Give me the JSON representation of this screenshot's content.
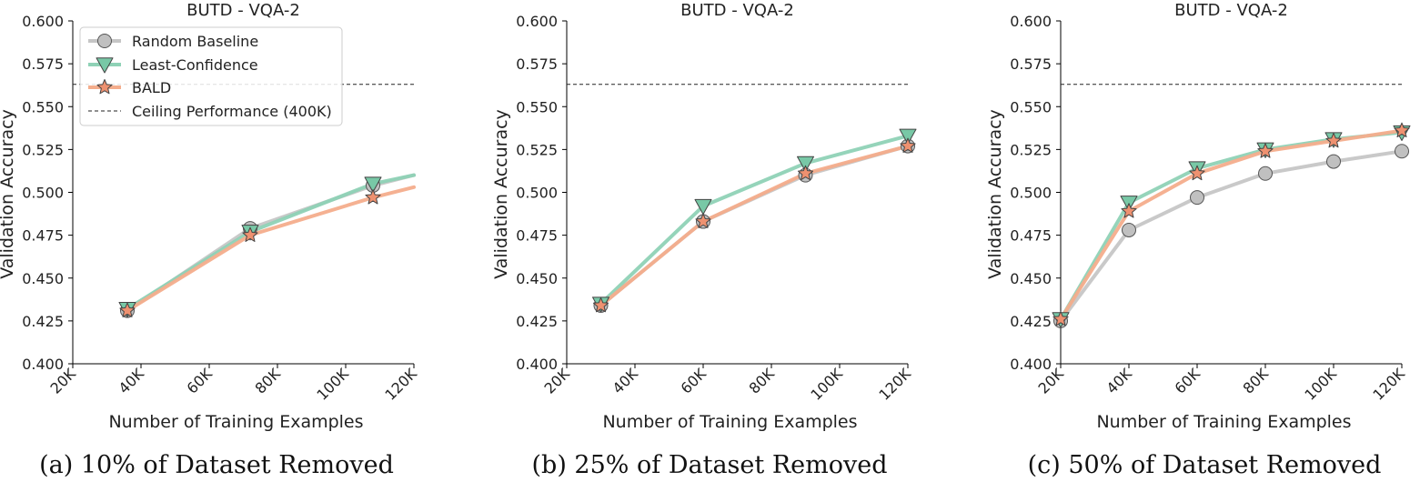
{
  "chart_data": [
    {
      "type": "line",
      "title": "BUTD - VQA-2",
      "xlabel": "Number of Training Examples",
      "ylabel": "Validation Accuracy",
      "xlim": [
        20000,
        120000
      ],
      "ylim": [
        0.4,
        0.6
      ],
      "xticks": [
        20000,
        40000,
        60000,
        80000,
        100000,
        120000
      ],
      "xtick_labels": [
        "20K",
        "40K",
        "60K",
        "80K",
        "100K",
        "120K"
      ],
      "yticks": [
        0.4,
        0.425,
        0.45,
        0.475,
        0.5,
        0.525,
        0.55,
        0.575,
        0.6
      ],
      "ytick_labels": [
        "0.400",
        "0.425",
        "0.450",
        "0.475",
        "0.500",
        "0.525",
        "0.550",
        "0.575",
        "0.600"
      ],
      "grid": false,
      "legend_position": "top-left",
      "ceiling": {
        "name": "Ceiling Performance (400K)",
        "value": 0.563
      },
      "x": [
        36000,
        72000,
        108000,
        120000
      ],
      "series": [
        {
          "name": "Random Baseline",
          "values": [
            0.431,
            0.479,
            0.504,
            0.51
          ]
        },
        {
          "name": "Least-Confidence",
          "values": [
            0.432,
            0.477,
            0.505,
            0.51
          ]
        },
        {
          "name": "BALD",
          "values": [
            0.431,
            0.475,
            0.497,
            0.503
          ]
        }
      ],
      "marker_count": 3,
      "caption": "(a) 10% of Dataset Removed"
    },
    {
      "type": "line",
      "title": "BUTD - VQA-2",
      "xlabel": "Number of Training Examples",
      "ylabel": "Validation Accuracy",
      "xlim": [
        20000,
        120000
      ],
      "ylim": [
        0.4,
        0.6
      ],
      "xticks": [
        20000,
        40000,
        60000,
        80000,
        100000,
        120000
      ],
      "xtick_labels": [
        "20K",
        "40K",
        "60K",
        "80K",
        "100K",
        "120K"
      ],
      "yticks": [
        0.4,
        0.425,
        0.45,
        0.475,
        0.5,
        0.525,
        0.55,
        0.575,
        0.6
      ],
      "ytick_labels": [
        "0.400",
        "0.425",
        "0.450",
        "0.475",
        "0.500",
        "0.525",
        "0.550",
        "0.575",
        "0.600"
      ],
      "grid": false,
      "ceiling": {
        "name": "Ceiling Performance (400K)",
        "value": 0.563
      },
      "x": [
        30000,
        60000,
        90000,
        120000
      ],
      "series": [
        {
          "name": "Random Baseline",
          "values": [
            0.434,
            0.483,
            0.51,
            0.527
          ]
        },
        {
          "name": "Least-Confidence",
          "values": [
            0.435,
            0.492,
            0.517,
            0.533
          ]
        },
        {
          "name": "BALD",
          "values": [
            0.434,
            0.483,
            0.511,
            0.527
          ]
        }
      ],
      "marker_count": 4,
      "caption": "(b) 25% of Dataset Removed"
    },
    {
      "type": "line",
      "title": "BUTD - VQA-2",
      "xlabel": "Number of Training Examples",
      "ylabel": "Validation Accuracy",
      "xlim": [
        20000,
        120000
      ],
      "ylim": [
        0.4,
        0.6
      ],
      "xticks": [
        20000,
        40000,
        60000,
        80000,
        100000,
        120000
      ],
      "xtick_labels": [
        "20K",
        "40K",
        "60K",
        "80K",
        "100K",
        "120K"
      ],
      "yticks": [
        0.4,
        0.425,
        0.45,
        0.475,
        0.5,
        0.525,
        0.55,
        0.575,
        0.6
      ],
      "ytick_labels": [
        "0.400",
        "0.425",
        "0.450",
        "0.475",
        "0.500",
        "0.525",
        "0.550",
        "0.575",
        "0.600"
      ],
      "grid": false,
      "ceiling": {
        "name": "Ceiling Performance (400K)",
        "value": 0.563
      },
      "x": [
        20000,
        40000,
        60000,
        80000,
        100000,
        120000
      ],
      "series": [
        {
          "name": "Random Baseline",
          "values": [
            0.425,
            0.478,
            0.497,
            0.511,
            0.518,
            0.524
          ]
        },
        {
          "name": "Least-Confidence",
          "values": [
            0.426,
            0.494,
            0.514,
            0.525,
            0.531,
            0.535
          ]
        },
        {
          "name": "BALD",
          "values": [
            0.426,
            0.489,
            0.511,
            0.524,
            0.53,
            0.536
          ]
        }
      ],
      "marker_count": 6,
      "caption": "(c) 50% of Dataset Removed"
    }
  ],
  "styles": {
    "colors": {
      "random": "#c6c6c6",
      "least_confidence": "#8fd2b6",
      "bald": "#f4ad8c",
      "ceiling": "#222222",
      "axis": "#000000"
    },
    "marker_fill": {
      "random": "#c0c0c0",
      "least_confidence": "#78c8a6",
      "bald": "#ee9170"
    },
    "markers": {
      "random": "circle",
      "least_confidence": "triangle-down",
      "bald": "star"
    }
  }
}
